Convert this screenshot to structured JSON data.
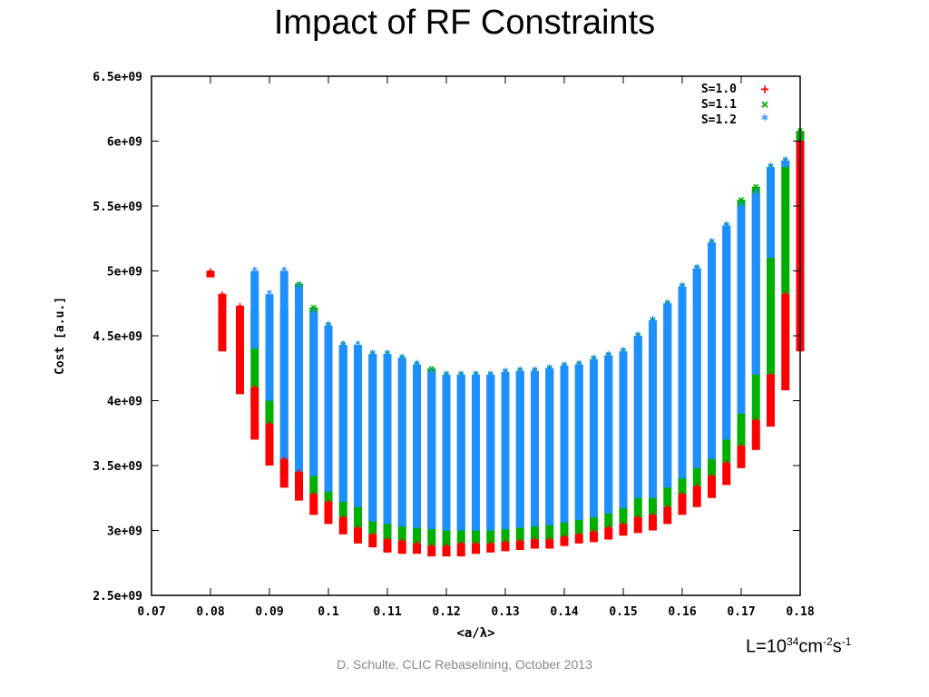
{
  "slide": {
    "title": "Impact of RF Constraints",
    "footer": "D. Schulte, CLIC Rebaselining, October 2013",
    "luminosity": {
      "prefix": "L=10",
      "exp1": "34",
      "mid": "cm",
      "exp2": "-2",
      "s": "s",
      "exp3": "-1"
    }
  },
  "chart_data": {
    "type": "scatter",
    "title": "",
    "xlabel": "<a/λ>",
    "ylabel": "Cost [a.u.]",
    "xlim": [
      0.07,
      0.18
    ],
    "ylim": [
      2500000000.0,
      6500000000.0
    ],
    "xtick_labels": [
      "0.07",
      "0.08",
      "0.09",
      "0.1",
      "0.11",
      "0.12",
      "0.13",
      "0.14",
      "0.15",
      "0.16",
      "0.17",
      "0.18"
    ],
    "ytick_labels": [
      "2.5e+09",
      "3e+09",
      "3.5e+09",
      "4e+09",
      "4.5e+09",
      "5e+09",
      "5.5e+09",
      "6e+09",
      "6.5e+09"
    ],
    "legend_position": "top-right",
    "series": [
      {
        "name": "S=1.0",
        "color": "#ff0000",
        "marker": "+"
      },
      {
        "name": "S=1.1",
        "color": "#00b000",
        "marker": "x"
      },
      {
        "name": "S=1.2",
        "color": "#1e8fff",
        "marker": "*"
      }
    ],
    "columns": [
      {
        "x": 0.08,
        "red": [
          4950000000.0,
          5000000000.0
        ]
      },
      {
        "x": 0.082,
        "red": [
          4380000000.0,
          4820000000.0
        ],
        "green": [
          4550000000.0,
          4750000000.0
        ]
      },
      {
        "x": 0.085,
        "red": [
          4050000000.0,
          4730000000.0
        ],
        "green": [
          4200000000.0,
          4600000000.0
        ]
      },
      {
        "x": 0.0875,
        "red": [
          3700000000.0,
          4100000000.0
        ],
        "green": [
          3950000000.0,
          4700000000.0
        ],
        "blue": [
          4400000000.0,
          5000000000.0
        ]
      },
      {
        "x": 0.09,
        "red": [
          3500000000.0,
          3820000000.0
        ],
        "green": [
          3620000000.0,
          4200000000.0
        ],
        "blue": [
          4000000000.0,
          4820000000.0
        ]
      },
      {
        "x": 0.0925,
        "red": [
          3330000000.0,
          3550000000.0
        ],
        "green": [
          3420000000.0,
          4720000000.0
        ],
        "blue": [
          3500000000.0,
          5000000000.0
        ]
      },
      {
        "x": 0.095,
        "red": [
          3230000000.0,
          3450000000.0
        ],
        "green": [
          3380000000.0,
          4900000000.0
        ],
        "blue": [
          3400000000.0,
          4880000000.0
        ]
      },
      {
        "x": 0.0975,
        "red": [
          3120000000.0,
          3280000000.0
        ],
        "green": [
          3280000000.0,
          4720000000.0
        ],
        "blue": [
          3420000000.0,
          4680000000.0
        ]
      },
      {
        "x": 0.1,
        "red": [
          3050000000.0,
          3220000000.0
        ],
        "green": [
          3220000000.0,
          4580000000.0
        ],
        "blue": [
          3300000000.0,
          4580000000.0
        ]
      },
      {
        "x": 0.1025,
        "red": [
          2970000000.0,
          3100000000.0
        ],
        "green": [
          3100000000.0,
          4430000000.0
        ],
        "blue": [
          3220000000.0,
          4430000000.0
        ]
      },
      {
        "x": 0.105,
        "red": [
          2900000000.0,
          3020000000.0
        ],
        "green": [
          3020000000.0,
          4330000000.0
        ],
        "blue": [
          3180000000.0,
          4430000000.0
        ]
      },
      {
        "x": 0.1075,
        "red": [
          2870000000.0,
          2970000000.0
        ],
        "green": [
          2970000000.0,
          4360000000.0
        ],
        "blue": [
          3070000000.0,
          4360000000.0
        ]
      },
      {
        "x": 0.11,
        "red": [
          2830000000.0,
          2930000000.0
        ],
        "green": [
          2930000000.0,
          4360000000.0
        ],
        "blue": [
          3050000000.0,
          4360000000.0
        ]
      },
      {
        "x": 0.1125,
        "red": [
          2820000000.0,
          2920000000.0
        ],
        "green": [
          2920000000.0,
          4330000000.0
        ],
        "blue": [
          3030000000.0,
          4330000000.0
        ]
      },
      {
        "x": 0.115,
        "red": [
          2820000000.0,
          2900000000.0
        ],
        "green": [
          2900000000.0,
          4280000000.0
        ],
        "blue": [
          3020000000.0,
          4280000000.0
        ]
      },
      {
        "x": 0.1175,
        "red": [
          2800000000.0,
          2880000000.0
        ],
        "green": [
          2880000000.0,
          4250000000.0
        ],
        "blue": [
          3010000000.0,
          4220000000.0
        ]
      },
      {
        "x": 0.12,
        "red": [
          2800000000.0,
          2880000000.0
        ],
        "green": [
          2880000000.0,
          4200000000.0
        ],
        "blue": [
          3000000000.0,
          4200000000.0
        ]
      },
      {
        "x": 0.1225,
        "red": [
          2800000000.0,
          2900000000.0
        ],
        "green": [
          2900000000.0,
          4200000000.0
        ],
        "blue": [
          3000000000.0,
          4200000000.0
        ]
      },
      {
        "x": 0.125,
        "red": [
          2820000000.0,
          2900000000.0
        ],
        "green": [
          2900000000.0,
          4200000000.0
        ],
        "blue": [
          3000000000.0,
          4200000000.0
        ]
      },
      {
        "x": 0.1275,
        "red": [
          2830000000.0,
          2900000000.0
        ],
        "green": [
          2900000000.0,
          4200000000.0
        ],
        "blue": [
          3000000000.0,
          4200000000.0
        ]
      },
      {
        "x": 0.13,
        "red": [
          2840000000.0,
          2910000000.0
        ],
        "green": [
          2910000000.0,
          4220000000.0
        ],
        "blue": [
          3010000000.0,
          4220000000.0
        ]
      },
      {
        "x": 0.1325,
        "red": [
          2850000000.0,
          2920000000.0
        ],
        "green": [
          2920000000.0,
          4230000000.0
        ],
        "blue": [
          3020000000.0,
          4230000000.0
        ]
      },
      {
        "x": 0.135,
        "red": [
          2860000000.0,
          2930000000.0
        ],
        "green": [
          2930000000.0,
          4230000000.0
        ],
        "blue": [
          3030000000.0,
          4230000000.0
        ]
      },
      {
        "x": 0.1375,
        "red": [
          2860000000.0,
          2930000000.0
        ],
        "green": [
          2930000000.0,
          4250000000.0
        ],
        "blue": [
          3040000000.0,
          4250000000.0
        ]
      },
      {
        "x": 0.14,
        "red": [
          2880000000.0,
          2950000000.0
        ],
        "green": [
          2950000000.0,
          4270000000.0
        ],
        "blue": [
          3060000000.0,
          4270000000.0
        ]
      },
      {
        "x": 0.1425,
        "red": [
          2900000000.0,
          2970000000.0
        ],
        "green": [
          2970000000.0,
          4280000000.0
        ],
        "blue": [
          3080000000.0,
          4280000000.0
        ]
      },
      {
        "x": 0.145,
        "red": [
          2910000000.0,
          2990000000.0
        ],
        "green": [
          2990000000.0,
          4320000000.0
        ],
        "blue": [
          3100000000.0,
          4320000000.0
        ]
      },
      {
        "x": 0.1475,
        "red": [
          2930000000.0,
          3020000000.0
        ],
        "green": [
          3020000000.0,
          4350000000.0
        ],
        "blue": [
          3130000000.0,
          4350000000.0
        ]
      },
      {
        "x": 0.15,
        "red": [
          2960000000.0,
          3050000000.0
        ],
        "green": [
          3050000000.0,
          4380000000.0
        ],
        "blue": [
          3170000000.0,
          4380000000.0
        ]
      },
      {
        "x": 0.1525,
        "red": [
          2980000000.0,
          3100000000.0
        ],
        "green": [
          3100000000.0,
          4500000000.0
        ],
        "blue": [
          3250000000.0,
          4500000000.0
        ]
      },
      {
        "x": 0.155,
        "red": [
          3000000000.0,
          3120000000.0
        ],
        "green": [
          3120000000.0,
          4620000000.0
        ],
        "blue": [
          3250000000.0,
          4620000000.0
        ]
      },
      {
        "x": 0.1575,
        "red": [
          3050000000.0,
          3180000000.0
        ],
        "green": [
          3180000000.0,
          4750000000.0
        ],
        "blue": [
          3330000000.0,
          4750000000.0
        ]
      },
      {
        "x": 0.16,
        "red": [
          3120000000.0,
          3280000000.0
        ],
        "green": [
          3280000000.0,
          4880000000.0
        ],
        "blue": [
          3400000000.0,
          4880000000.0
        ]
      },
      {
        "x": 0.1625,
        "red": [
          3180000000.0,
          3340000000.0
        ],
        "green": [
          3340000000.0,
          5020000000.0
        ],
        "blue": [
          3480000000.0,
          5020000000.0
        ]
      },
      {
        "x": 0.165,
        "red": [
          3250000000.0,
          3420000000.0
        ],
        "green": [
          3420000000.0,
          5220000000.0
        ],
        "blue": [
          3550000000.0,
          5220000000.0
        ]
      },
      {
        "x": 0.1675,
        "red": [
          3350000000.0,
          3520000000.0
        ],
        "green": [
          3520000000.0,
          5350000000.0
        ],
        "blue": [
          3700000000.0,
          5350000000.0
        ]
      },
      {
        "x": 0.17,
        "red": [
          3480000000.0,
          3650000000.0
        ],
        "green": [
          3650000000.0,
          5550000000.0
        ],
        "blue": [
          3900000000.0,
          5500000000.0
        ]
      },
      {
        "x": 0.1725,
        "red": [
          3620000000.0,
          3850000000.0
        ],
        "green": [
          3850000000.0,
          5650000000.0
        ],
        "blue": [
          4200000000.0,
          5600000000.0
        ]
      },
      {
        "x": 0.175,
        "red": [
          3800000000.0,
          4200000000.0
        ],
        "green": [
          4200000000.0,
          5800000000.0
        ],
        "blue": [
          5100000000.0,
          5800000000.0
        ]
      },
      {
        "x": 0.1775,
        "red": [
          4080000000.0,
          4820000000.0
        ],
        "green": [
          4820000000.0,
          5850000000.0
        ],
        "blue": [
          5800000000.0,
          5850000000.0
        ]
      },
      {
        "x": 0.18,
        "red": [
          4380000000.0,
          6000000000.0
        ],
        "green": [
          5600000000.0,
          6080000000.0
        ]
      }
    ]
  }
}
